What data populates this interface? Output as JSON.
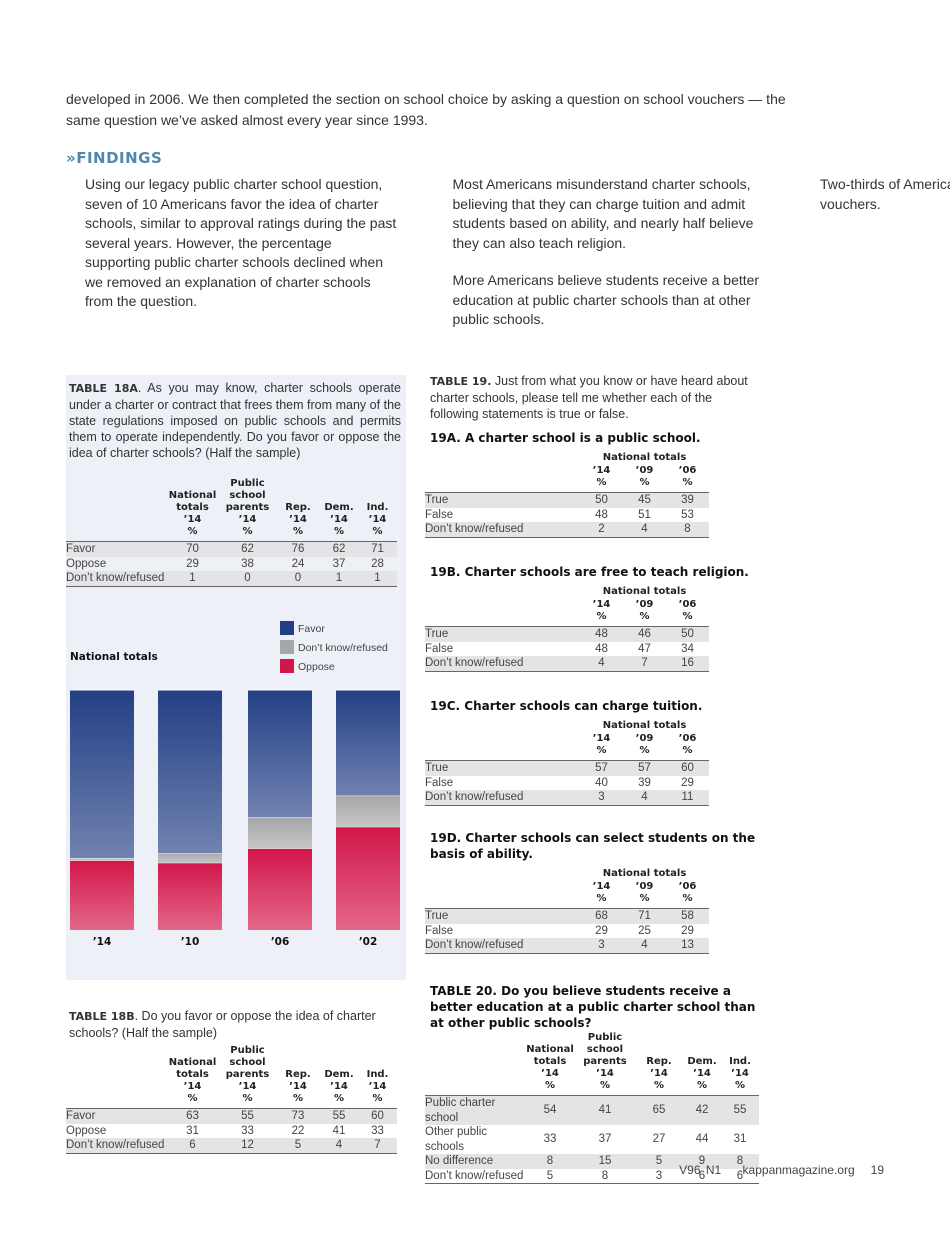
{
  "intro": "developed in 2006. We then completed the section on school choice by asking a question on school vouchers — the same question we’ve asked almost every year since 1993.",
  "findings": {
    "heading": "FINDINGS",
    "paragraphs": [
      "Using our legacy public charter school question, seven of 10 Americans favor the idea of charter schools, similar to approval ratings during the past several years. However, the percentage supporting public charter schools declined when we removed an explanation of charter schools from the question.",
      "Most Americans misunderstand charter schools, believing that they can charge tuition and admit students based on ability, and nearly half believe they can also teach religion.",
      "More Americans believe students receive a better education at public charter schools than at other public schools.",
      "Two-thirds of Americans oppose public school vouchers."
    ]
  },
  "table18a": {
    "label": "TABLE 18A",
    "caption": ". As you may know, charter schools operate under a charter or contract that frees them from many of the state regulations imposed on public schools and permits them to operate independently. Do you favor or oppose the idea of charter schools?  (Half the sample)",
    "columns": [
      [
        "National",
        "totals",
        "’14",
        "%"
      ],
      [
        "Public",
        "school",
        "parents",
        "’14",
        "%"
      ],
      [
        "Rep.",
        "’14",
        "%"
      ],
      [
        "Dem.",
        "’14",
        "%"
      ],
      [
        "Ind.",
        "’14",
        "%"
      ]
    ],
    "rows": [
      [
        "Favor",
        70,
        62,
        76,
        62,
        71
      ],
      [
        "Oppose",
        29,
        38,
        24,
        37,
        28
      ],
      [
        "Don’t know/refused",
        1,
        0,
        0,
        1,
        1
      ]
    ]
  },
  "chart": {
    "type": "bar",
    "stacked": true,
    "label": "National totals",
    "categories": [
      "’14",
      "’10",
      "’06",
      "’02"
    ],
    "ylim": [
      0,
      100
    ],
    "series": [
      {
        "name": "Favor",
        "color": "#233f85",
        "values": [
          70,
          68,
          53,
          44
        ]
      },
      {
        "name": "Don’t know/refused",
        "color": "#a7a7a9",
        "values": [
          1,
          4,
          13,
          13
        ]
      },
      {
        "name": "Oppose",
        "color": "#d3164a",
        "values": [
          29,
          28,
          34,
          43
        ]
      }
    ]
  },
  "table18b": {
    "label": "TABLE 18B",
    "caption": ". Do you favor or oppose the idea of charter schools? (Half the sample)",
    "columns": [
      [
        "National",
        "totals",
        "’14",
        "%"
      ],
      [
        "Public school",
        "parents",
        "’14",
        "%"
      ],
      [
        "Rep.",
        "’14",
        "%"
      ],
      [
        "Dem.",
        "’14",
        "%"
      ],
      [
        "Ind.",
        "’14",
        "%"
      ]
    ],
    "rows": [
      [
        "Favor",
        63,
        55,
        73,
        55,
        60
      ],
      [
        "Oppose",
        31,
        33,
        22,
        41,
        33
      ],
      [
        "Don’t know/refused",
        6,
        12,
        5,
        4,
        7
      ]
    ]
  },
  "table19": {
    "label": "TABLE 19.",
    "caption": " Just from what you know or have heard about charter schools, please tell me whether each of the following statements is true or false.",
    "parts": [
      {
        "label": "19A.",
        "title": " A charter school is a public school.",
        "group": "National totals",
        "columns": [
          [
            "’14",
            "%"
          ],
          [
            "’09",
            "%"
          ],
          [
            "’06",
            "%"
          ]
        ],
        "rows": [
          [
            "True",
            50,
            45,
            39
          ],
          [
            "False",
            48,
            51,
            53
          ],
          [
            "Don’t know/refused",
            2,
            4,
            8
          ]
        ]
      },
      {
        "label": "19B.",
        "title": " Charter schools are free to teach religion.",
        "group": "National totals",
        "columns": [
          [
            "’14",
            "%"
          ],
          [
            "’09",
            "%"
          ],
          [
            "’06",
            "%"
          ]
        ],
        "rows": [
          [
            "True",
            48,
            46,
            50
          ],
          [
            "False",
            48,
            47,
            34
          ],
          [
            "Don’t know/refused",
            4,
            7,
            16
          ]
        ]
      },
      {
        "label": "19C.",
        "title": " Charter schools can charge tuition.",
        "group": "National totals",
        "columns": [
          [
            "’14",
            "%"
          ],
          [
            "’09",
            "%"
          ],
          [
            "’06",
            "%"
          ]
        ],
        "rows": [
          [
            "True",
            57,
            57,
            60
          ],
          [
            "False",
            40,
            39,
            29
          ],
          [
            "Don’t know/refused",
            3,
            4,
            11
          ]
        ]
      },
      {
        "label": "19D.",
        "title": " Charter schools can select students on the basis of ability.",
        "group": "National totals",
        "columns": [
          [
            "’14",
            "%"
          ],
          [
            "’09",
            "%"
          ],
          [
            "’06",
            "%"
          ]
        ],
        "rows": [
          [
            "True",
            68,
            71,
            58
          ],
          [
            "False",
            29,
            25,
            29
          ],
          [
            "Don’t know/refused",
            3,
            4,
            13
          ]
        ]
      }
    ]
  },
  "table20": {
    "label": "TABLE 20.",
    "caption": " Do you believe students receive a better education at a public charter school than at other public schools?",
    "columns": [
      [
        "National",
        "totals",
        "’14",
        "%"
      ],
      [
        "Public school",
        "parents",
        "’14",
        "%"
      ],
      [
        "Rep.",
        "’14",
        "%"
      ],
      [
        "Dem.",
        "’14",
        "%"
      ],
      [
        "Ind.",
        "’14",
        "%"
      ]
    ],
    "rows": [
      [
        "Public charter school",
        54,
        41,
        65,
        42,
        55
      ],
      [
        "Other public schools",
        33,
        37,
        27,
        44,
        31
      ],
      [
        "No difference",
        8,
        15,
        5,
        9,
        8
      ],
      [
        "Don’t know/refused",
        5,
        8,
        3,
        6,
        6
      ]
    ]
  },
  "footer": {
    "issue": "V96 N1",
    "site": "kappanmagazine.org",
    "page": "19"
  }
}
